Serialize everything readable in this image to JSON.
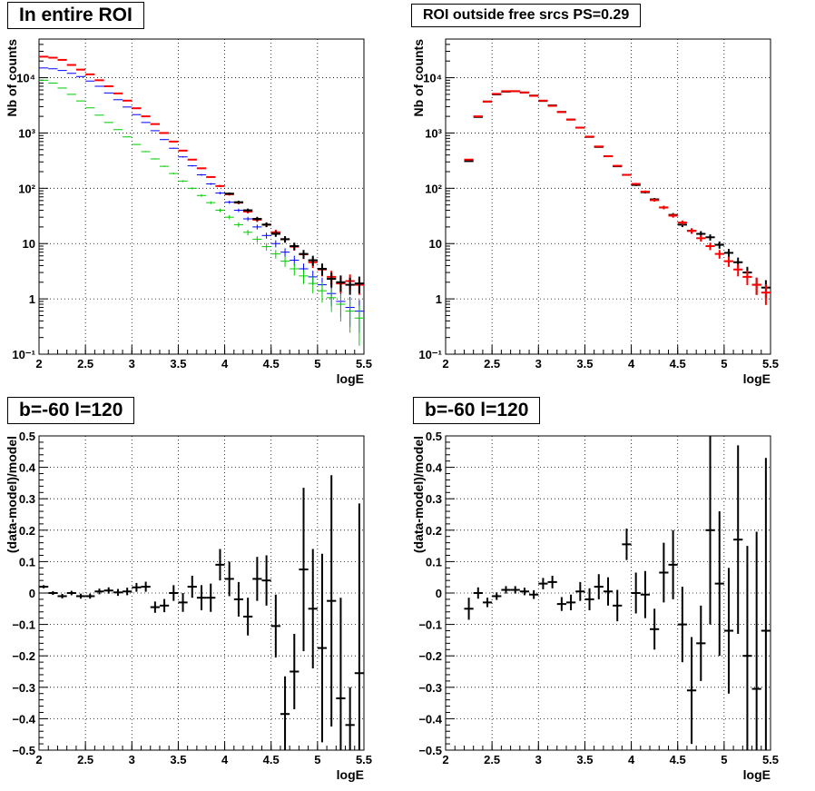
{
  "chart_data": [
    {
      "type": "scatter",
      "title": "In entire ROI",
      "xlabel": "logE",
      "ylabel": "Nb of counts",
      "xlim": [
        2,
        5.5
      ],
      "ylim": [
        0.1,
        50000
      ],
      "yscale": "log",
      "grid": true,
      "x_ticks": [
        "2",
        "2.5",
        "3",
        "3.5",
        "4",
        "4.5",
        "5",
        "5.5"
      ],
      "y_ticks": [
        "10⁻¹",
        "1",
        "10",
        "10²",
        "10³",
        "10⁴"
      ],
      "series": [
        {
          "color": "#0000ff",
          "x": [
            2.05,
            2.15,
            2.25,
            2.35,
            2.45,
            2.55,
            2.65,
            2.75,
            2.85,
            2.95,
            3.05,
            3.15,
            3.25,
            3.35,
            3.45,
            3.55,
            3.65,
            3.75,
            3.85,
            3.95,
            4.05,
            4.15,
            4.25,
            4.35,
            4.45,
            4.55,
            4.65,
            4.75,
            4.85,
            4.95,
            5.05,
            5.15,
            5.25,
            5.35,
            5.45
          ],
          "y": [
            15000,
            14500,
            13500,
            12000,
            10500,
            8700,
            7000,
            5300,
            4000,
            2950,
            2150,
            1550,
            1100,
            760,
            530,
            370,
            255,
            175,
            120,
            82,
            56,
            40,
            28,
            20,
            14,
            10,
            7,
            5,
            3.5,
            2.5,
            1.8,
            1.25,
            0.9,
            0.7,
            0.6
          ]
        },
        {
          "color": "#00cc00",
          "x": [
            2.05,
            2.15,
            2.25,
            2.35,
            2.45,
            2.55,
            2.65,
            2.75,
            2.85,
            2.95,
            3.05,
            3.15,
            3.25,
            3.35,
            3.45,
            3.55,
            3.65,
            3.75,
            3.85,
            3.95,
            4.05,
            4.15,
            4.25,
            4.35,
            4.45,
            4.55,
            4.65,
            4.75,
            4.85,
            4.95,
            5.05,
            5.15,
            5.25,
            5.35,
            5.45
          ],
          "y": [
            9000,
            8000,
            6500,
            5000,
            3800,
            2850,
            2100,
            1550,
            1150,
            850,
            620,
            460,
            340,
            250,
            185,
            135,
            100,
            74,
            55,
            40,
            30,
            22,
            16,
            12,
            8.8,
            6.5,
            4.8,
            3.5,
            2.6,
            1.9,
            1.4,
            1.05,
            0.8,
            0.6,
            0.45
          ]
        },
        {
          "color": "#ff0000",
          "x": [
            2.05,
            2.15,
            2.25,
            2.35,
            2.45,
            2.55,
            2.65,
            2.75,
            2.85,
            2.95,
            3.05,
            3.15,
            3.25,
            3.35,
            3.45,
            3.55,
            3.65,
            3.75,
            3.85,
            3.95,
            4.05,
            4.15,
            4.25,
            4.35,
            4.45,
            4.55,
            4.65,
            4.75,
            4.85,
            4.95,
            5.05,
            5.15,
            5.25,
            5.35,
            5.45
          ],
          "y": [
            24000,
            23000,
            21000,
            17000,
            14000,
            11500,
            9000,
            7000,
            5200,
            3850,
            2800,
            2000,
            1450,
            1000,
            700,
            480,
            330,
            230,
            160,
            110,
            78,
            55,
            38,
            27,
            22,
            16,
            12,
            8.8,
            6.4,
            4.6,
            3.4,
            2.5,
            1.9,
            2.1,
            1.8
          ]
        },
        {
          "color": "#000000",
          "x": [
            4.05,
            4.15,
            4.25,
            4.35,
            4.45,
            4.55,
            4.65,
            4.75,
            4.85,
            4.95,
            5.05,
            5.15,
            5.25,
            5.35,
            5.45
          ],
          "y": [
            80,
            56,
            40,
            28,
            22,
            15,
            12,
            9,
            6.5,
            5,
            3.5,
            2.3,
            2.0,
            1.8,
            1.9
          ]
        }
      ]
    },
    {
      "type": "scatter",
      "title": "ROI outside free srcs PS=0.29",
      "xlabel": "logE",
      "ylabel": "Nb of counts",
      "xlim": [
        2,
        5.5
      ],
      "ylim": [
        0.1,
        50000
      ],
      "yscale": "log",
      "grid": true,
      "x_ticks": [
        "2",
        "2.5",
        "3",
        "3.5",
        "4",
        "4.5",
        "5",
        "5.5"
      ],
      "y_ticks": [
        "10⁻¹",
        "1",
        "10",
        "10²",
        "10³",
        "10⁴"
      ],
      "series": [
        {
          "color": "#000000",
          "x": [
            2.25,
            2.35,
            2.45,
            2.55,
            2.65,
            2.75,
            2.85,
            2.95,
            3.05,
            3.15,
            3.25,
            3.35,
            3.45,
            3.55,
            3.65,
            3.75,
            3.85,
            3.95,
            4.05,
            4.15,
            4.25,
            4.35,
            4.45,
            4.55,
            4.65,
            4.75,
            4.85,
            4.95,
            5.05,
            5.15,
            5.25,
            5.35,
            5.45
          ],
          "y": [
            310,
            1950,
            3700,
            5000,
            5600,
            5700,
            5400,
            4750,
            3800,
            3150,
            2400,
            1750,
            1250,
            850,
            560,
            380,
            250,
            175,
            115,
            85,
            63,
            45,
            33,
            22,
            17,
            15,
            13,
            9.5,
            6.8,
            4.6,
            3,
            1.8,
            1.6
          ]
        },
        {
          "color": "#ff0000",
          "x": [
            2.25,
            2.35,
            2.45,
            2.55,
            2.65,
            2.75,
            2.85,
            2.95,
            3.05,
            3.15,
            3.25,
            3.35,
            3.45,
            3.55,
            3.65,
            3.75,
            3.85,
            3.95,
            4.05,
            4.15,
            4.25,
            4.35,
            4.45,
            4.55,
            4.65,
            4.75,
            4.85,
            4.95,
            5.05,
            5.15,
            5.25,
            5.35,
            5.45
          ],
          "y": [
            330,
            2000,
            3700,
            5100,
            5700,
            5700,
            5400,
            4700,
            3850,
            3100,
            2400,
            1750,
            1250,
            860,
            570,
            380,
            255,
            175,
            120,
            87,
            61,
            45,
            32,
            24,
            17,
            12.5,
            9,
            6.5,
            4.8,
            3.4,
            2.5,
            1.8,
            1.3
          ]
        }
      ]
    },
    {
      "type": "scatter",
      "title": "b=-60 l=120",
      "xlabel": "logE",
      "ylabel": "(data-model)/model",
      "xlim": [
        2,
        5.5
      ],
      "ylim": [
        -0.5,
        0.5
      ],
      "grid": true,
      "x_ticks": [
        "2",
        "2.5",
        "3",
        "3.5",
        "4",
        "4.5",
        "5",
        "5.5"
      ],
      "y_ticks": [
        "−0.5",
        "−0.4",
        "−0.3",
        "−0.2",
        "−0.1",
        "0",
        "0.1",
        "0.2",
        "0.3",
        "0.4",
        "0.5"
      ],
      "series": [
        {
          "color": "#000000",
          "x": [
            2.05,
            2.15,
            2.25,
            2.35,
            2.45,
            2.55,
            2.65,
            2.75,
            2.85,
            2.95,
            3.05,
            3.15,
            3.25,
            3.35,
            3.45,
            3.55,
            3.65,
            3.75,
            3.85,
            3.95,
            4.05,
            4.15,
            4.25,
            4.35,
            4.45,
            4.55,
            4.65,
            4.75,
            4.85,
            4.95,
            5.05,
            5.15,
            5.25,
            5.35,
            5.45
          ],
          "y": [
            0.02,
            0.0,
            -0.01,
            0.0,
            -0.01,
            -0.01,
            0.005,
            0.008,
            0.002,
            0.005,
            0.018,
            0.02,
            -0.045,
            -0.04,
            0.0,
            -0.03,
            0.02,
            -0.015,
            -0.015,
            0.09,
            0.045,
            -0.02,
            -0.075,
            0.045,
            0.04,
            -0.105,
            -0.385,
            -0.25,
            0.075,
            -0.05,
            -0.175,
            -0.025,
            -0.335,
            -0.42,
            -0.255
          ],
          "err": [
            0.005,
            0.006,
            0.007,
            0.007,
            0.008,
            0.008,
            0.009,
            0.01,
            0.011,
            0.012,
            0.014,
            0.016,
            0.018,
            0.021,
            0.025,
            0.03,
            0.035,
            0.04,
            0.045,
            0.05,
            0.055,
            0.055,
            0.06,
            0.07,
            0.08,
            0.1,
            0.12,
            0.12,
            0.26,
            0.19,
            0.3,
            0.4,
            0.32,
            0.12,
            0.54
          ]
        }
      ]
    },
    {
      "type": "scatter",
      "title": "b=-60 l=120",
      "xlabel": "logE",
      "ylabel": "(data-model)/model",
      "xlim": [
        2,
        5.5
      ],
      "ylim": [
        -0.5,
        0.5
      ],
      "grid": true,
      "x_ticks": [
        "2",
        "2.5",
        "3",
        "3.5",
        "4",
        "4.5",
        "5",
        "5.5"
      ],
      "y_ticks": [
        "−0.5",
        "−0.4",
        "−0.3",
        "−0.2",
        "−0.1",
        "0",
        "0.1",
        "0.2",
        "0.3",
        "0.4",
        "0.5"
      ],
      "series": [
        {
          "color": "#000000",
          "x": [
            2.25,
            2.35,
            2.45,
            2.55,
            2.65,
            2.75,
            2.85,
            2.95,
            3.05,
            3.15,
            3.25,
            3.35,
            3.45,
            3.55,
            3.65,
            3.75,
            3.85,
            3.95,
            4.05,
            4.15,
            4.25,
            4.35,
            4.45,
            4.55,
            4.65,
            4.75,
            4.85,
            4.95,
            5.05,
            5.15,
            5.25,
            5.35,
            5.45
          ],
          "y": [
            -0.05,
            0.0,
            -0.03,
            -0.01,
            0.01,
            0.01,
            0.005,
            -0.005,
            0.03,
            0.035,
            -0.035,
            -0.03,
            0.005,
            -0.02,
            0.02,
            0.005,
            -0.04,
            0.155,
            0.0,
            -0.005,
            -0.115,
            0.065,
            0.09,
            -0.1,
            -0.31,
            -0.16,
            0.2,
            0.03,
            -0.12,
            0.17,
            -0.2,
            -0.305,
            -0.12
          ],
          "err": [
            0.035,
            0.018,
            0.015,
            0.012,
            0.012,
            0.012,
            0.012,
            0.014,
            0.018,
            0.02,
            0.022,
            0.025,
            0.03,
            0.035,
            0.04,
            0.045,
            0.05,
            0.05,
            0.065,
            0.075,
            0.065,
            0.095,
            0.11,
            0.12,
            0.17,
            0.12,
            0.3,
            0.23,
            0.2,
            0.3,
            0.35,
            0.5,
            0.55
          ]
        }
      ]
    }
  ]
}
